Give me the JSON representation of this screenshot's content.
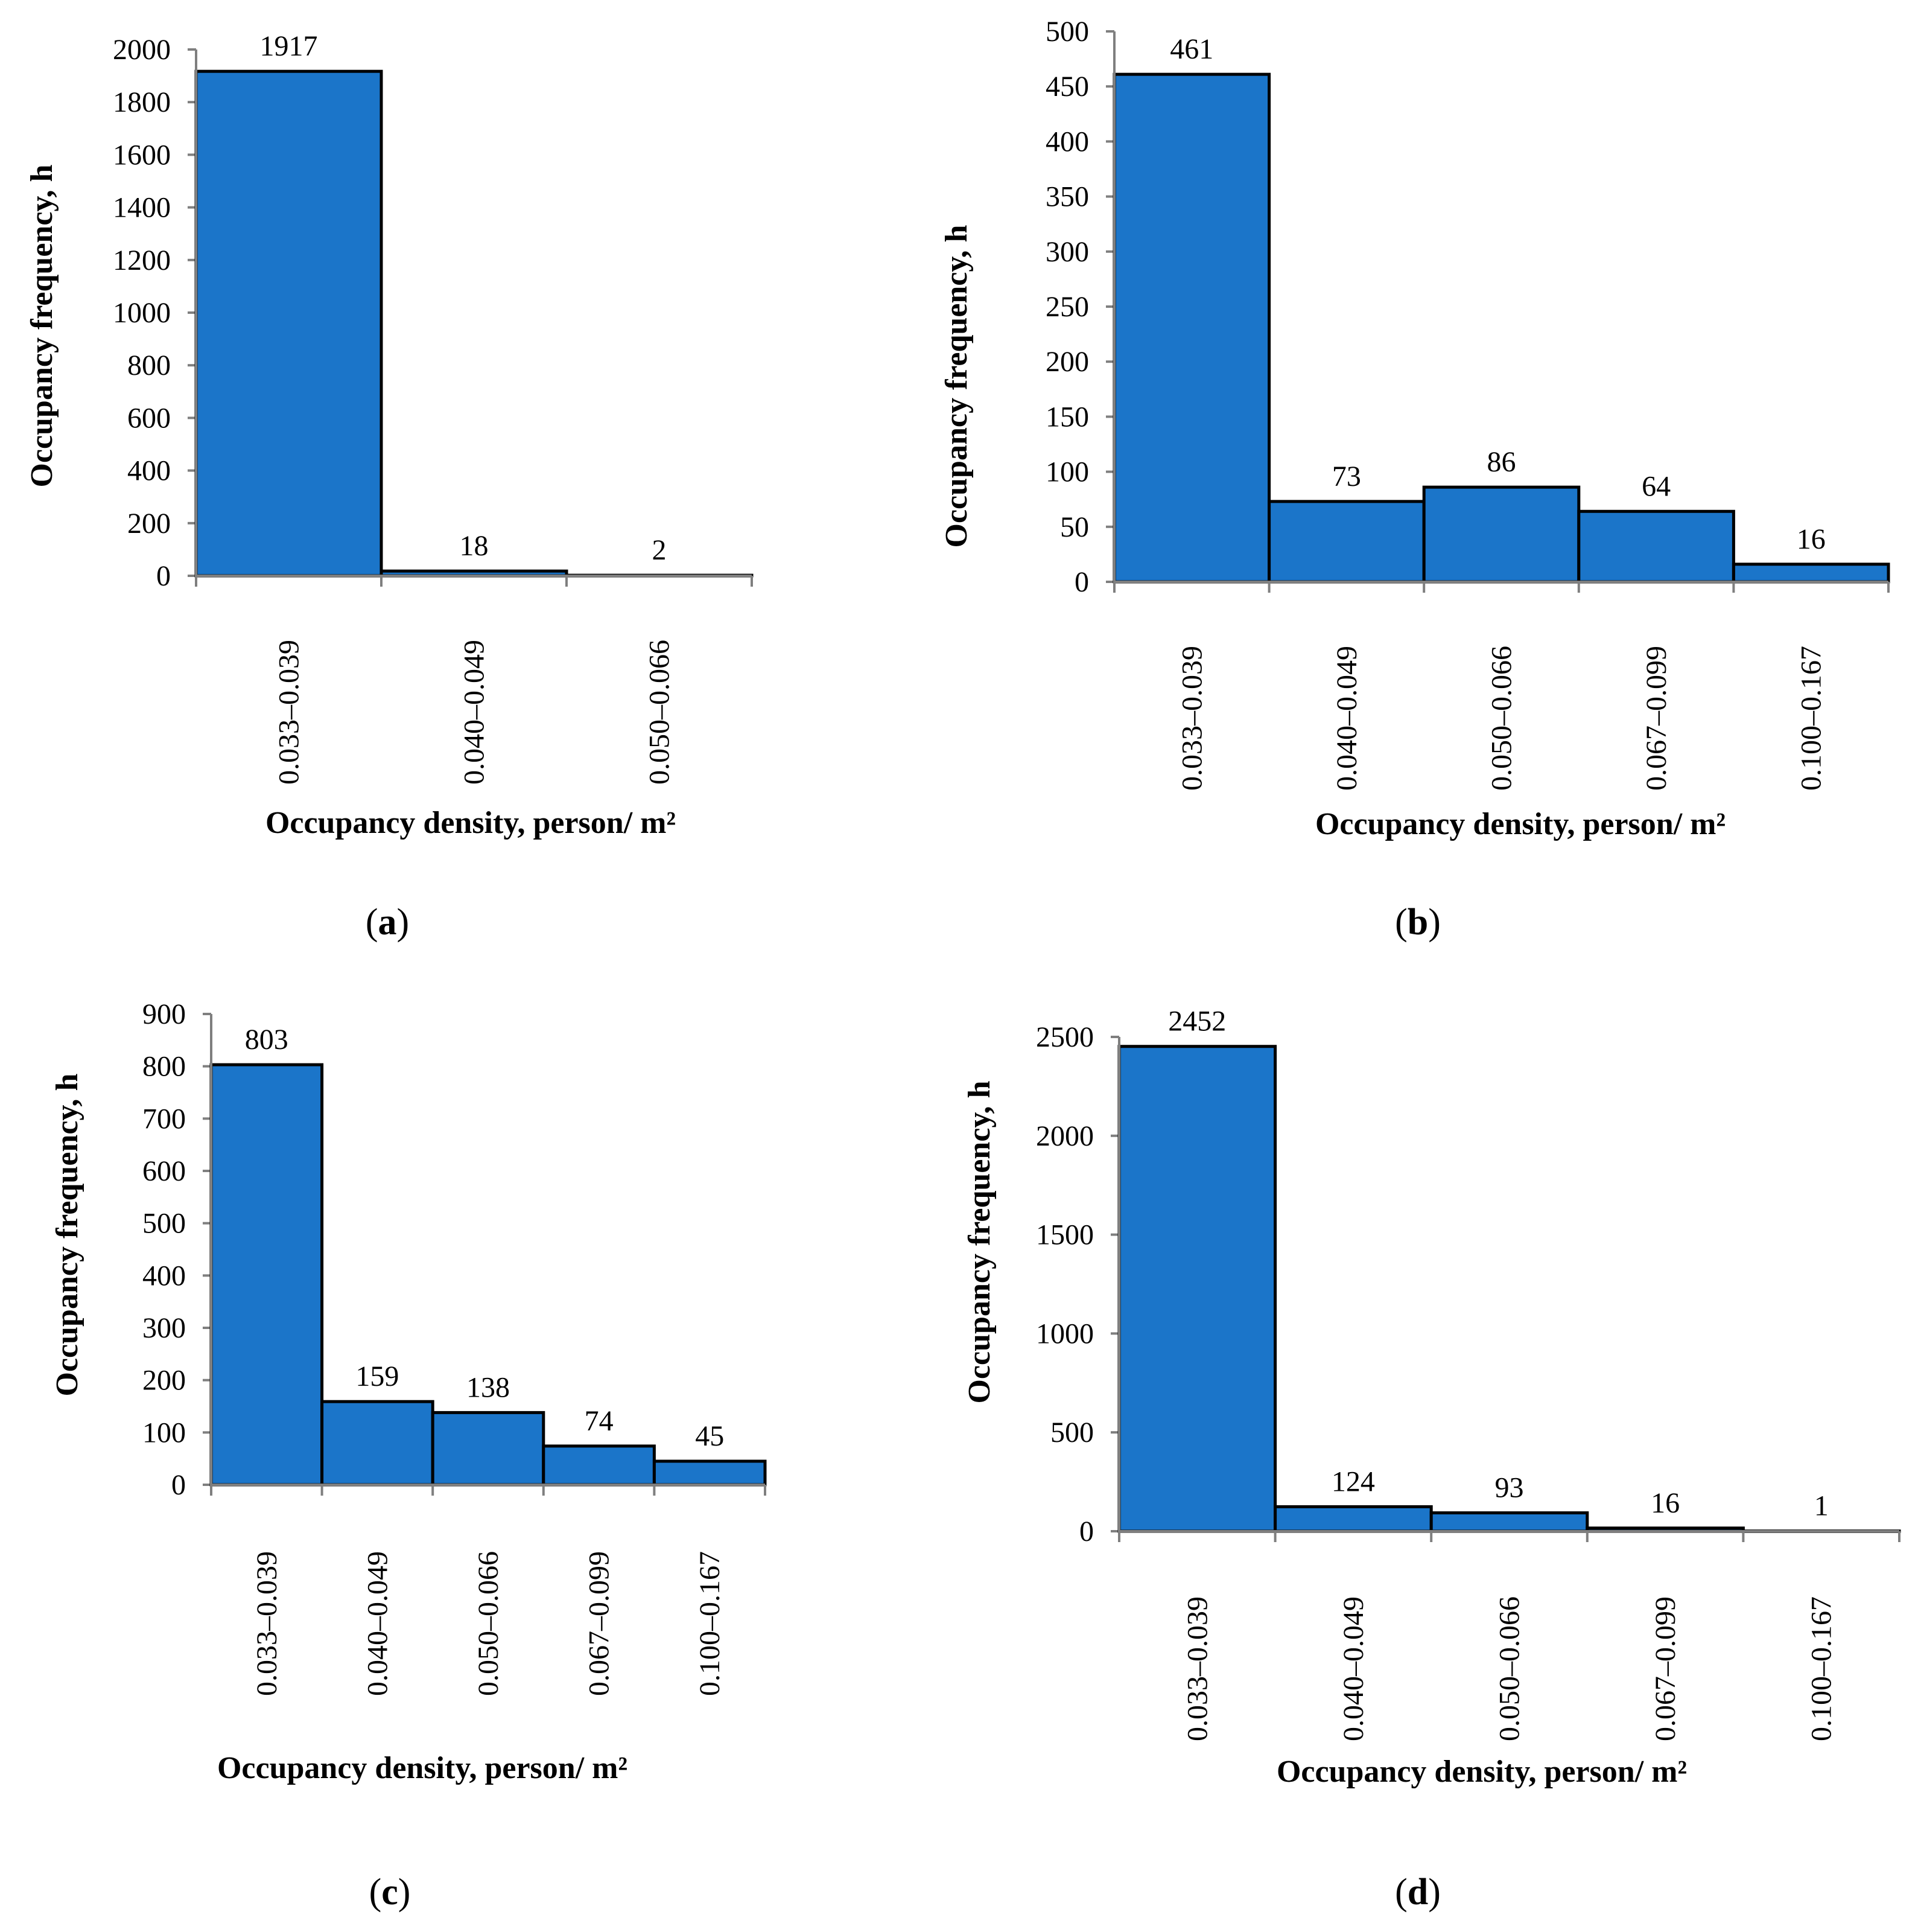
{
  "chart_data": [
    {
      "type": "bar",
      "panel": "a",
      "categories": [
        "0.033–0.039",
        "0.040–0.049",
        "0.050–0.066"
      ],
      "values": [
        1917,
        18,
        2
      ],
      "data_labels": [
        "1917",
        "18",
        "2"
      ],
      "yticks": [
        "0",
        "200",
        "400",
        "600",
        "800",
        "1000",
        "1200",
        "1400",
        "1600",
        "1800",
        "2000"
      ],
      "ylim": [
        0,
        2000
      ],
      "xlabel": "Occupancy density, person/ m²",
      "ylabel": "Occupancy frequency, h",
      "bar_color": "#1b75c9"
    },
    {
      "type": "bar",
      "panel": "b",
      "categories": [
        "0.033–0.039",
        "0.040–0.049",
        "0.050–0.066",
        "0.067–0.099",
        "0.100–0.167"
      ],
      "values": [
        461,
        73,
        86,
        64,
        16
      ],
      "data_labels": [
        "461",
        "73",
        "86",
        "64",
        "16"
      ],
      "yticks": [
        "0",
        "50",
        "100",
        "150",
        "200",
        "250",
        "300",
        "350",
        "400",
        "450",
        "500"
      ],
      "ylim": [
        0,
        500
      ],
      "xlabel": "Occupancy density, person/ m²",
      "ylabel": "Occupancy frequency, h",
      "bar_color": "#1b75c9"
    },
    {
      "type": "bar",
      "panel": "c",
      "categories": [
        "0.033–0.039",
        "0.040–0.049",
        "0.050–0.066",
        "0.067–0.099",
        "0.100–0.167"
      ],
      "values": [
        803,
        159,
        138,
        74,
        45
      ],
      "data_labels": [
        "803",
        "159",
        "138",
        "74",
        "45"
      ],
      "yticks": [
        "0",
        "100",
        "200",
        "300",
        "400",
        "500",
        "600",
        "700",
        "800",
        "900"
      ],
      "ylim": [
        0,
        900
      ],
      "xlabel": "Occupancy density, person/ m²",
      "ylabel": "Occupancy frequency, h",
      "bar_color": "#1b75c9"
    },
    {
      "type": "bar",
      "panel": "d",
      "categories": [
        "0.033–0.039",
        "0.040–0.049",
        "0.050–0.066",
        "0.067–0.099",
        "0.100–0.167"
      ],
      "values": [
        2452,
        124,
        93,
        16,
        1
      ],
      "data_labels": [
        "2452",
        "124",
        "93",
        "16",
        "1"
      ],
      "yticks": [
        "0",
        "500",
        "1000",
        "1500",
        "2000",
        "2500"
      ],
      "ylim": [
        0,
        2500
      ],
      "xlabel": "Occupancy density, person/ m²",
      "ylabel": "Occupancy frequency, h",
      "bar_color": "#1b75c9"
    }
  ],
  "captions": [
    {
      "open": "(",
      "letter": "a",
      "close": ")"
    },
    {
      "open": "(",
      "letter": "b",
      "close": ")"
    },
    {
      "open": "(",
      "letter": "c",
      "close": ")"
    },
    {
      "open": "(",
      "letter": "d",
      "close": ")"
    }
  ]
}
